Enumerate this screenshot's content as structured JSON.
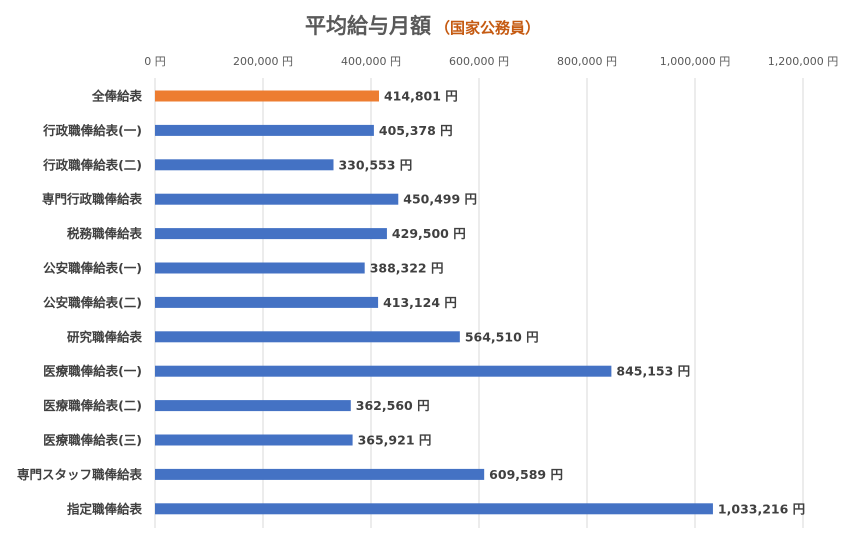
{
  "chart_data": {
    "type": "bar",
    "orientation": "horizontal",
    "title": "平均給与月額",
    "subtitle": "（国家公務員）",
    "categories": [
      "全俸給表",
      "行政職俸給表(一)",
      "行政職俸給表(二)",
      "専門行政職俸給表",
      "税務職俸給表",
      "公安職俸給表(一)",
      "公安職俸給表(二)",
      "研究職俸給表",
      "医療職俸給表(一)",
      "医療職俸給表(二)",
      "医療職俸給表(三)",
      "専門スタッフ職俸給表",
      "指定職俸給表"
    ],
    "values": [
      414801,
      405378,
      330553,
      450499,
      429500,
      388322,
      413124,
      564510,
      845153,
      362560,
      365921,
      609589,
      1033216
    ],
    "value_labels": [
      "414,801 円",
      "405,378 円",
      "330,553 円",
      "450,499 円",
      "429,500 円",
      "388,322 円",
      "413,124 円",
      "564,510 円",
      "845,153 円",
      "362,560 円",
      "365,921 円",
      "609,589 円",
      "1,033,216 円"
    ],
    "x_ticks": [
      0,
      200000,
      400000,
      600000,
      800000,
      1000000,
      1200000
    ],
    "x_tick_labels": [
      "0 円",
      "200,000 円",
      "400,000 円",
      "600,000 円",
      "800,000 円",
      "1,000,000 円",
      "1,200,000 円"
    ],
    "xlim": [
      0,
      1200000
    ],
    "xlabel": "",
    "ylabel": "",
    "grid": true,
    "axis_position": "top",
    "colors": {
      "highlight": "#ED7D31",
      "default": "#4472C4",
      "subtitle": "#C55A11",
      "grid": "#D9D9D9"
    },
    "highlight_index": 0
  }
}
